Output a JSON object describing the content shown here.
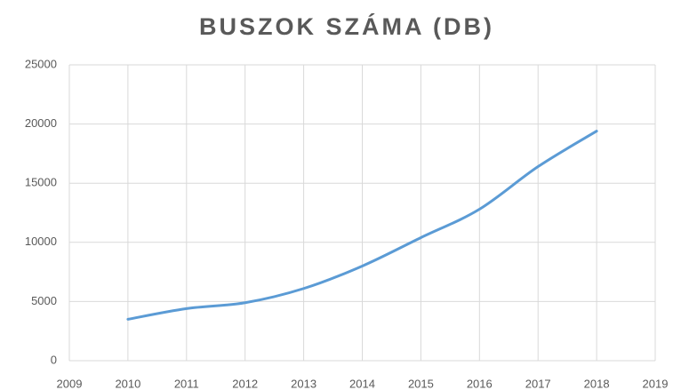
{
  "chart_data": {
    "type": "line",
    "title": "BUSZOK SZÁMA (DB)",
    "x": [
      2010,
      2011,
      2012,
      2013,
      2014,
      2015,
      2016,
      2017,
      2018
    ],
    "series": [
      {
        "name": "Buszok",
        "color": "#5b9bd5",
        "values": [
          3500,
          4400,
          4900,
          6100,
          8000,
          10400,
          12800,
          16400,
          19400
        ]
      }
    ],
    "xlim": [
      2009,
      2019
    ],
    "xticks": [
      2009,
      2010,
      2011,
      2012,
      2013,
      2014,
      2015,
      2016,
      2017,
      2018,
      2019
    ],
    "ylim": [
      0,
      25000
    ],
    "yticks": [
      0,
      5000,
      10000,
      15000,
      20000,
      25000
    ],
    "grid": true
  }
}
